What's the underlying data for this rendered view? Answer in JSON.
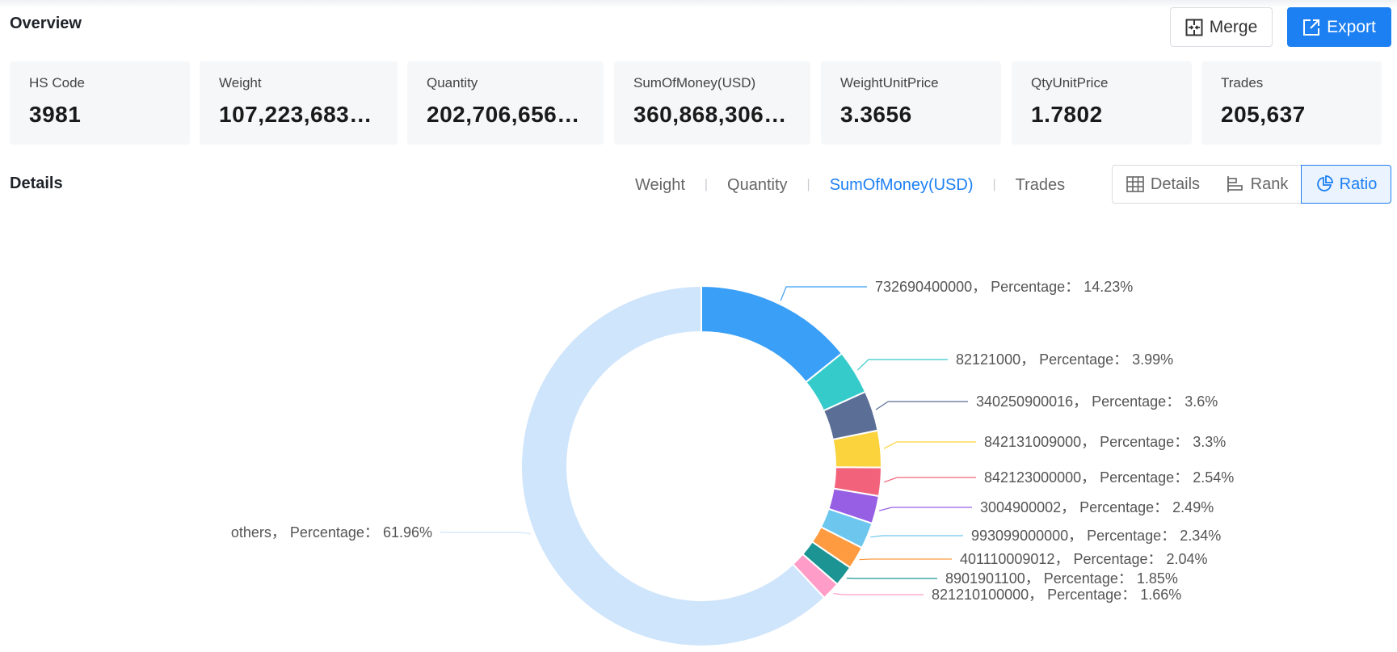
{
  "overview": {
    "title": "Overview",
    "merge_label": "Merge",
    "export_label": "Export",
    "cards": [
      {
        "label": "HS Code",
        "value": "3981"
      },
      {
        "label": "Weight",
        "value": "107,223,683…"
      },
      {
        "label": "Quantity",
        "value": "202,706,656…"
      },
      {
        "label": "SumOfMoney(USD)",
        "value": "360,868,306…"
      },
      {
        "label": "WeightUnitPrice",
        "value": "3.3656"
      },
      {
        "label": "QtyUnitPrice",
        "value": "1.7802"
      },
      {
        "label": "Trades",
        "value": "205,637"
      }
    ]
  },
  "details": {
    "title": "Details",
    "metric_tabs": [
      "Weight",
      "Quantity",
      "SumOfMoney(USD)",
      "Trades"
    ],
    "active_metric": "SumOfMoney(USD)",
    "view_buttons": {
      "details": "Details",
      "rank": "Rank",
      "ratio": "Ratio"
    },
    "active_view": "Ratio"
  },
  "chart_data": {
    "type": "pie",
    "donut": true,
    "label_separator": "， Percentage：",
    "slices": [
      {
        "label": "732690400000",
        "value": 14.23,
        "color": "#3a9ff6"
      },
      {
        "label": "82121000",
        "value": 3.99,
        "color": "#36cbcb"
      },
      {
        "label": "340250900016",
        "value": 3.6,
        "color": "#5b6e96"
      },
      {
        "label": "842131009000",
        "value": 3.3,
        "color": "#fad33d"
      },
      {
        "label": "842123000000",
        "value": 2.54,
        "color": "#f2637b"
      },
      {
        "label": "3004900002",
        "value": 2.49,
        "color": "#975fe4"
      },
      {
        "label": "993099000000",
        "value": 2.34,
        "color": "#6cc6ee"
      },
      {
        "label": "401110009012",
        "value": 2.04,
        "color": "#fe9a3f"
      },
      {
        "label": "8901901100",
        "value": 1.85,
        "color": "#1c9494"
      },
      {
        "label": "821210100000",
        "value": 1.66,
        "color": "#ff9cc8"
      },
      {
        "label": "others",
        "value": 61.96,
        "color": "#cfe5fc"
      }
    ]
  }
}
